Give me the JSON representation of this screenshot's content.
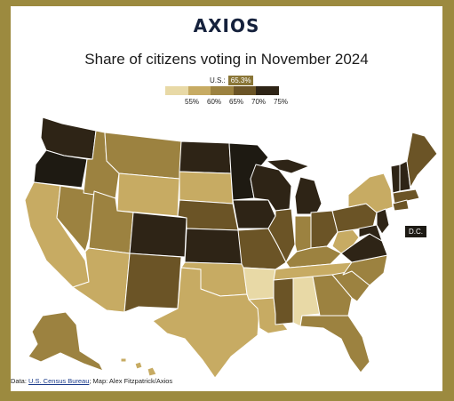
{
  "logo": "AXIOS",
  "title": "Share of citizens voting in November 2024",
  "us_label": "U.S.:",
  "us_value": "65.3%",
  "legend": {
    "ticks": [
      "55%",
      "60%",
      "65%",
      "70%",
      "75%"
    ],
    "colors": [
      "#e8d9a6",
      "#c7ab63",
      "#9c8240",
      "#6b5426",
      "#2e2416",
      "#1e1a12"
    ]
  },
  "dc_label": "D.C.",
  "source": {
    "prefix": "Data: ",
    "link": "U.S. Census Bureau",
    "suffix": "; Map: Alex Fitzpatrick/Axios"
  },
  "colors": {
    "frame": "#9c8a3f",
    "ocean": "#ffffff",
    "very_low": "#e8d9a6",
    "low": "#c7ab63",
    "mid": "#9c8240",
    "high": "#6b5426",
    "very_high": "#2e2416"
  }
}
